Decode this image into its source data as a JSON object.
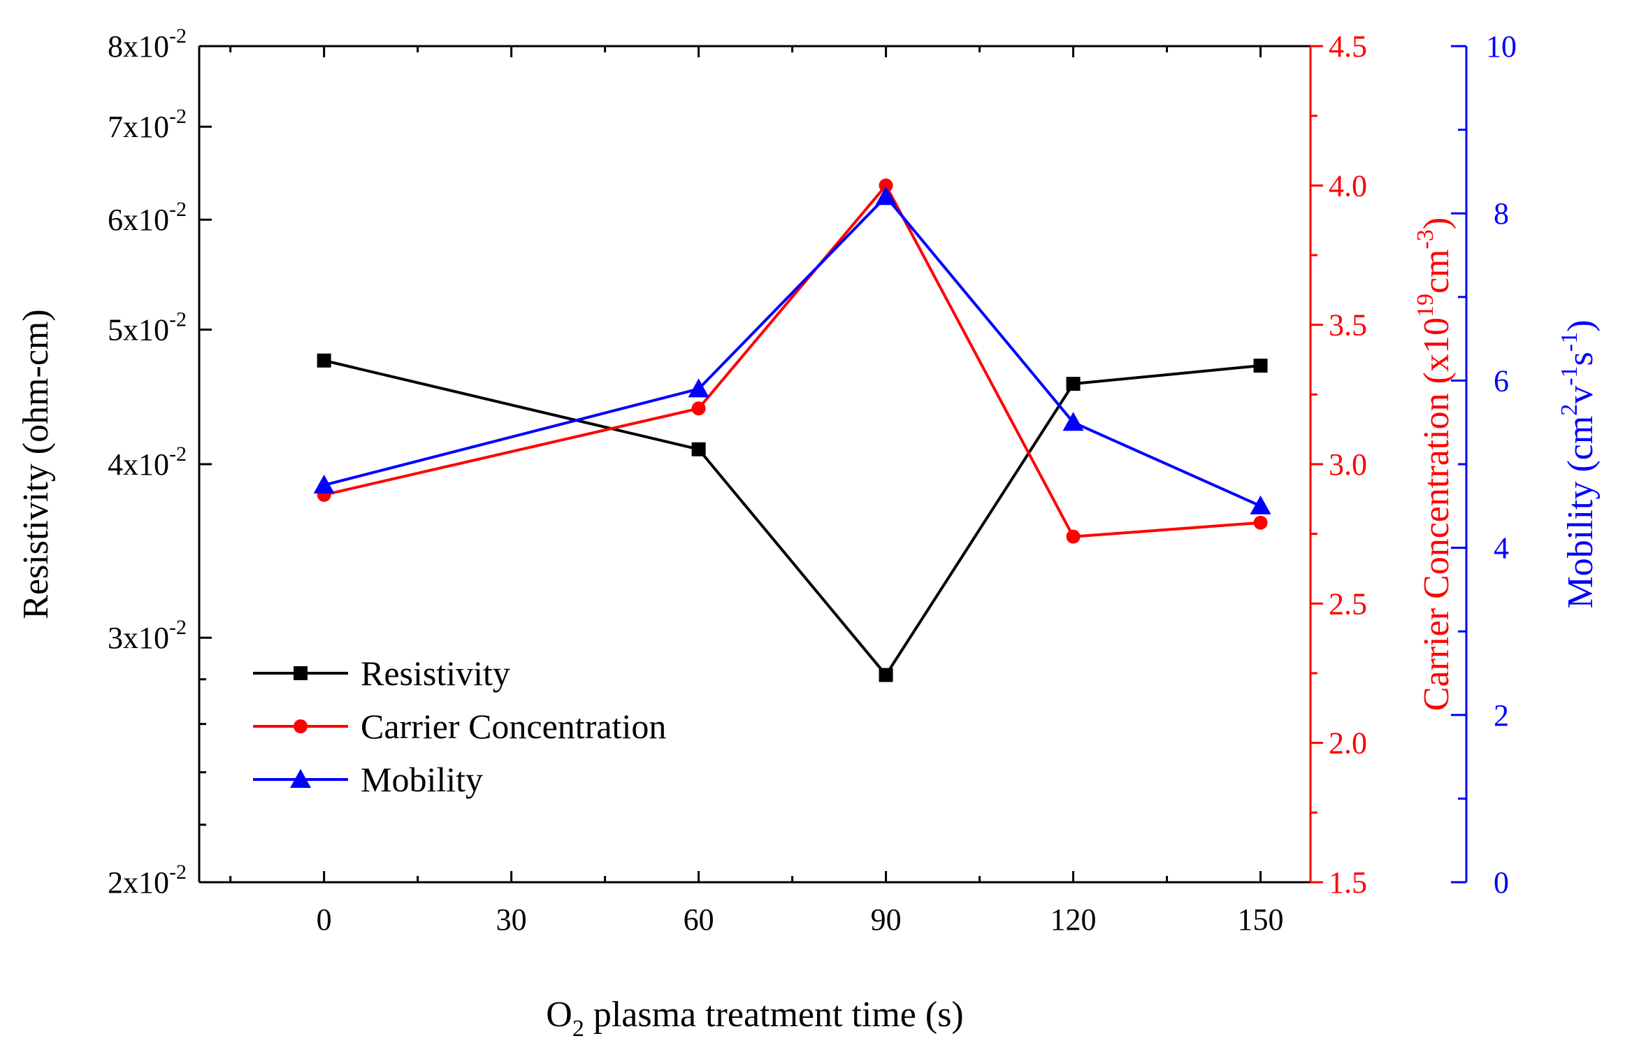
{
  "chart_data": {
    "type": "line",
    "x": [
      0,
      60,
      90,
      120,
      150
    ],
    "xlabel": {
      "pre": "O",
      "sub": "2",
      "post": " plasma treatment time (s)"
    },
    "xlim": [
      -20,
      158
    ],
    "x_ticks": [
      0,
      30,
      60,
      90,
      120,
      150
    ],
    "x_tick_labels": [
      "0",
      "30",
      "60",
      "90",
      "120",
      "150"
    ],
    "series": [
      {
        "name": "Resistivity",
        "color": "#000000",
        "marker": "square",
        "axis": "left",
        "values": [
          0.0475,
          0.041,
          0.0282,
          0.0457,
          0.0471
        ]
      },
      {
        "name": "Carrier Concentration",
        "color": "#ff0000",
        "marker": "circle",
        "axis": "right1",
        "values": [
          2.89,
          3.2,
          4.0,
          2.74,
          2.79
        ]
      },
      {
        "name": "Mobility",
        "color": "#0000ff",
        "marker": "triangle",
        "axis": "right2",
        "values": [
          4.75,
          5.9,
          8.2,
          5.5,
          4.5
        ]
      }
    ],
    "y_left": {
      "label": "Resistivity (ohm-cm)",
      "scale": "log",
      "range": [
        0.02,
        0.08
      ],
      "color": "#000000",
      "ticks": [
        {
          "value": 0.02,
          "base": "2x10",
          "exp": "-2"
        },
        {
          "value": 0.03,
          "base": "3x10",
          "exp": "-2"
        },
        {
          "value": 0.04,
          "base": "4x10",
          "exp": "-2"
        },
        {
          "value": 0.05,
          "base": "5x10",
          "exp": "-2"
        },
        {
          "value": 0.06,
          "base": "6x10",
          "exp": "-2"
        },
        {
          "value": 0.07,
          "base": "7x10",
          "exp": "-2"
        },
        {
          "value": 0.08,
          "base": "8x10",
          "exp": "-2"
        }
      ]
    },
    "y_right1": {
      "label": {
        "pre": "Carrier Concentration (x10",
        "sup1": "19",
        "mid": "cm",
        "sup2": "-3",
        "post": ")"
      },
      "range": [
        1.5,
        4.5
      ],
      "color": "#ff0000",
      "ticks": [
        1.5,
        2.0,
        2.5,
        3.0,
        3.5,
        4.0,
        4.5
      ],
      "tick_labels": [
        "1.5",
        "2.0",
        "2.5",
        "3.0",
        "3.5",
        "4.0",
        "4.5"
      ]
    },
    "y_right2": {
      "label": {
        "pre": "Mobility (cm",
        "sup1": "2",
        "mid1": "v",
        "sup2": "-1",
        "mid2": "s",
        "sup3": "-1",
        "post": ")"
      },
      "range": [
        0,
        10
      ],
      "color": "#0000ff",
      "ticks": [
        0,
        2,
        4,
        6,
        8,
        10
      ],
      "tick_labels": [
        "0",
        "2",
        "4",
        "6",
        "8",
        "10"
      ]
    },
    "legend": {
      "position": "lower-left",
      "entries": [
        "Resistivity",
        "Carrier Concentration",
        "Mobility"
      ]
    }
  }
}
